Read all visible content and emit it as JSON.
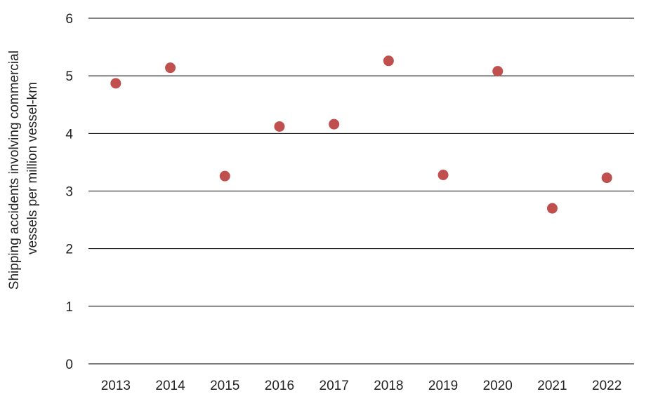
{
  "chart_data": {
    "type": "scatter",
    "title": "",
    "xlabel": "",
    "ylabel_lines": [
      "Shipping  accidents involving commercial",
      "vessels per million vessel-km"
    ],
    "categories": [
      "2013",
      "2014",
      "2015",
      "2016",
      "2017",
      "2018",
      "2019",
      "2020",
      "2021",
      "2022"
    ],
    "series": [
      {
        "values": [
          4.87,
          5.14,
          3.26,
          4.12,
          4.16,
          5.26,
          3.28,
          5.08,
          2.7,
          3.23
        ],
        "color": "#c0504d"
      }
    ],
    "ylim": [
      0,
      6
    ],
    "yticks": [
      0,
      1,
      2,
      3,
      4,
      5,
      6
    ],
    "grid": "horizontal",
    "legend": "none"
  }
}
